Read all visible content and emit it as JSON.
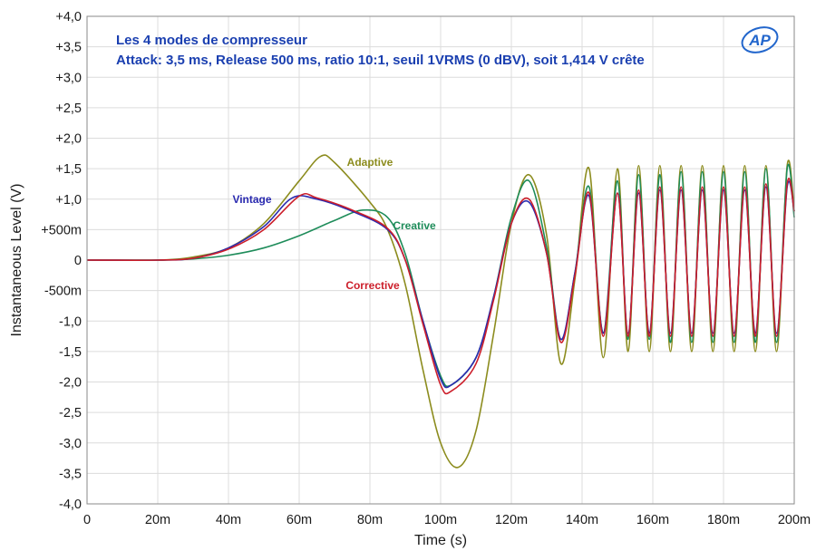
{
  "chart_data": {
    "type": "line",
    "title": "Les 4 modes de compresseur",
    "subtitle": "Attack: 3,5 ms, Release 500 ms, ratio 10:1, seuil 1VRMS (0 dBV), soit 1,414 V crête",
    "xlabel": "Time (s)",
    "ylabel": "Instantaneous Level (V)",
    "xlim": [
      0,
      0.2
    ],
    "ylim": [
      -4.0,
      4.0
    ],
    "grid": true,
    "logo": "AP",
    "x_tick_labels": [
      "0",
      "20m",
      "40m",
      "60m",
      "80m",
      "100m",
      "120m",
      "140m",
      "160m",
      "180m",
      "200m"
    ],
    "y_tick_labels": [
      "+4,0",
      "+3,5",
      "+3,0",
      "+2,5",
      "+2,0",
      "+1,5",
      "+1,0",
      "+500m",
      "0",
      "-500m",
      "-1,0",
      "-1,5",
      "-2,0",
      "-2,5",
      "-3,0",
      "-3,5",
      "-4,0"
    ],
    "series": [
      {
        "name": "Adaptive",
        "color": "#8c8c1e",
        "x": [
          0,
          0.02,
          0.03,
          0.04,
          0.05,
          0.06,
          0.066,
          0.07,
          0.08,
          0.085,
          0.09,
          0.095,
          0.1,
          0.105,
          0.11,
          0.115,
          0.12,
          0.125,
          0.13,
          0.134,
          0.138,
          0.142,
          0.146,
          0.15,
          0.153,
          0.156,
          0.159,
          0.162,
          0.165,
          0.168,
          0.171,
          0.174,
          0.177,
          0.18,
          0.183,
          0.186,
          0.189,
          0.192,
          0.195,
          0.198,
          0.2
        ],
        "y": [
          0,
          0,
          0.05,
          0.2,
          0.6,
          1.3,
          1.7,
          1.6,
          0.95,
          0.5,
          -0.4,
          -1.8,
          -3.0,
          -3.4,
          -2.8,
          -1.2,
          0.6,
          1.4,
          0.4,
          -1.7,
          -0.3,
          1.5,
          -1.6,
          1.5,
          -1.5,
          1.55,
          -1.5,
          1.55,
          -1.5,
          1.55,
          -1.5,
          1.55,
          -1.5,
          1.55,
          -1.5,
          1.55,
          -1.5,
          1.55,
          -1.5,
          1.55,
          0.8
        ]
      },
      {
        "name": "Creative",
        "color": "#1e8c5a",
        "x": [
          0,
          0.02,
          0.03,
          0.04,
          0.05,
          0.06,
          0.07,
          0.078,
          0.085,
          0.09,
          0.095,
          0.1,
          0.103,
          0.11,
          0.115,
          0.12,
          0.125,
          0.13,
          0.134,
          0.138,
          0.142,
          0.146,
          0.15,
          0.153,
          0.156,
          0.159,
          0.162,
          0.165,
          0.168,
          0.171,
          0.174,
          0.177,
          0.18,
          0.183,
          0.186,
          0.189,
          0.192,
          0.195,
          0.198,
          0.2
        ],
        "y": [
          0,
          0,
          0.02,
          0.08,
          0.2,
          0.4,
          0.65,
          0.82,
          0.7,
          0.1,
          -1.0,
          -1.9,
          -2.05,
          -1.6,
          -0.6,
          0.7,
          1.3,
          0.2,
          -1.3,
          -0.2,
          1.2,
          -1.2,
          1.3,
          -1.3,
          1.4,
          -1.3,
          1.4,
          -1.35,
          1.45,
          -1.35,
          1.45,
          -1.35,
          1.45,
          -1.35,
          1.45,
          -1.35,
          1.5,
          -1.35,
          1.5,
          0.7
        ]
      },
      {
        "name": "Vintage",
        "color": "#2a2ab0",
        "x": [
          0,
          0.02,
          0.03,
          0.04,
          0.05,
          0.058,
          0.065,
          0.075,
          0.085,
          0.09,
          0.095,
          0.1,
          0.103,
          0.11,
          0.115,
          0.12,
          0.125,
          0.13,
          0.134,
          0.138,
          0.142,
          0.146,
          0.15,
          0.153,
          0.156,
          0.159,
          0.162,
          0.165,
          0.168,
          0.171,
          0.174,
          0.177,
          0.18,
          0.183,
          0.186,
          0.189,
          0.192,
          0.195,
          0.198,
          0.2
        ],
        "y": [
          0,
          0,
          0.03,
          0.2,
          0.55,
          1.02,
          1.0,
          0.8,
          0.5,
          0.0,
          -1.0,
          -1.95,
          -2.05,
          -1.6,
          -0.6,
          0.6,
          0.95,
          0.1,
          -1.3,
          -0.2,
          1.05,
          -1.2,
          1.1,
          -1.2,
          1.1,
          -1.2,
          1.15,
          -1.2,
          1.15,
          -1.2,
          1.15,
          -1.2,
          1.15,
          -1.2,
          1.15,
          -1.2,
          1.2,
          -1.2,
          1.2,
          0.8
        ]
      },
      {
        "name": "Corrective",
        "color": "#cc1e2a",
        "x": [
          0,
          0.02,
          0.03,
          0.04,
          0.05,
          0.06,
          0.065,
          0.075,
          0.085,
          0.09,
          0.095,
          0.1,
          0.103,
          0.11,
          0.115,
          0.12,
          0.125,
          0.13,
          0.134,
          0.138,
          0.142,
          0.146,
          0.15,
          0.153,
          0.156,
          0.159,
          0.162,
          0.165,
          0.168,
          0.171,
          0.174,
          0.177,
          0.18,
          0.183,
          0.186,
          0.189,
          0.192,
          0.195,
          0.198,
          0.2
        ],
        "y": [
          0,
          0,
          0.03,
          0.18,
          0.5,
          1.05,
          1.02,
          0.82,
          0.52,
          0.0,
          -1.05,
          -2.05,
          -2.15,
          -1.7,
          -0.65,
          0.6,
          1.0,
          0.1,
          -1.35,
          -0.25,
          1.1,
          -1.25,
          1.1,
          -1.25,
          1.15,
          -1.25,
          1.2,
          -1.25,
          1.2,
          -1.25,
          1.2,
          -1.25,
          1.2,
          -1.25,
          1.2,
          -1.25,
          1.25,
          -1.25,
          1.25,
          0.8
        ]
      }
    ]
  }
}
